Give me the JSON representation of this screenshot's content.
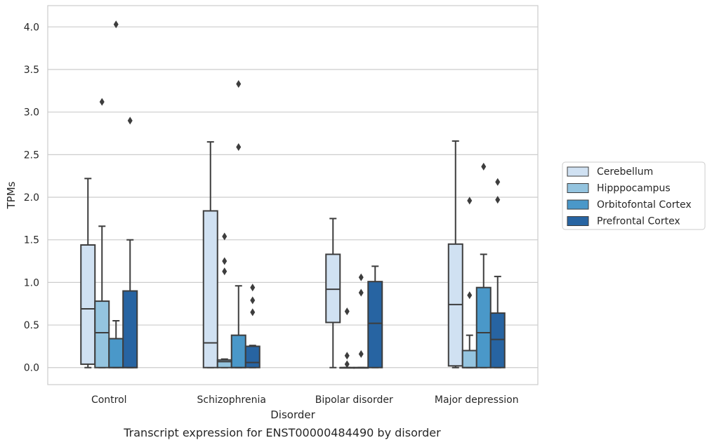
{
  "chart_data": {
    "type": "box",
    "title": "Transcript expression for ENST00000484490 by disorder",
    "xlabel": "Disorder",
    "ylabel": "TPMs",
    "ylim": [
      -0.2,
      4.25
    ],
    "yticks": [
      0.0,
      0.5,
      1.0,
      1.5,
      2.0,
      2.5,
      3.0,
      3.5,
      4.0
    ],
    "ytick_labels": [
      "0.0",
      "0.5",
      "1.0",
      "1.5",
      "2.0",
      "2.5",
      "3.0",
      "3.5",
      "4.0"
    ],
    "grid": "horizontal",
    "legend_position": "right",
    "categories": [
      "Control",
      "Schizophrenia",
      "Bipolar disorder",
      "Major depression"
    ],
    "series": [
      {
        "name": "Cerebellum",
        "color": "#d0e1f2",
        "boxes": [
          {
            "whislo": 0.0,
            "q1": 0.04,
            "med": 0.69,
            "q3": 1.44,
            "whishi": 2.22,
            "fliers": []
          },
          {
            "whislo": 0.0,
            "q1": 0.0,
            "med": 0.29,
            "q3": 1.84,
            "whishi": 2.65,
            "fliers": []
          },
          {
            "whislo": 0.0,
            "q1": 0.53,
            "med": 0.92,
            "q3": 1.33,
            "whishi": 1.75,
            "fliers": []
          },
          {
            "whislo": 0.0,
            "q1": 0.02,
            "med": 0.74,
            "q3": 1.45,
            "whishi": 2.66,
            "fliers": []
          }
        ]
      },
      {
        "name": "Hipppocampus",
        "color": "#94c4df",
        "boxes": [
          {
            "whislo": 0.0,
            "q1": 0.0,
            "med": 0.41,
            "q3": 0.78,
            "whishi": 1.66,
            "fliers": [
              3.12
            ]
          },
          {
            "whislo": 0.0,
            "q1": 0.0,
            "med": 0.07,
            "q3": 0.09,
            "whishi": 0.1,
            "fliers": [
              1.54,
              1.25,
              1.13
            ]
          },
          {
            "whislo": 0.0,
            "q1": 0.0,
            "med": 0.0,
            "q3": 0.0,
            "whishi": 0.0,
            "fliers": [
              0.66,
              0.14,
              0.04
            ]
          },
          {
            "whislo": 0.0,
            "q1": 0.0,
            "med": 0.0,
            "q3": 0.2,
            "whishi": 0.38,
            "fliers": [
              1.96,
              0.85
            ]
          }
        ]
      },
      {
        "name": "Orbitofontal Cortex",
        "color": "#4a98c9",
        "boxes": [
          {
            "whislo": 0.0,
            "q1": 0.0,
            "med": 0.0,
            "q3": 0.34,
            "whishi": 0.55,
            "fliers": [
              4.03
            ]
          },
          {
            "whislo": 0.0,
            "q1": 0.0,
            "med": 0.0,
            "q3": 0.38,
            "whishi": 0.96,
            "fliers": [
              3.33,
              2.59
            ]
          },
          {
            "whislo": 0.0,
            "q1": 0.0,
            "med": 0.0,
            "q3": 0.0,
            "whishi": 0.0,
            "fliers": [
              1.06,
              0.88,
              0.16
            ]
          },
          {
            "whislo": 0.0,
            "q1": 0.0,
            "med": 0.41,
            "q3": 0.94,
            "whishi": 1.33,
            "fliers": [
              2.36
            ]
          }
        ]
      },
      {
        "name": "Prefrontal Cortex",
        "color": "#2764a2",
        "boxes": [
          {
            "whislo": 0.0,
            "q1": 0.0,
            "med": 0.0,
            "q3": 0.9,
            "whishi": 1.5,
            "fliers": [
              2.9
            ]
          },
          {
            "whislo": 0.0,
            "q1": 0.0,
            "med": 0.06,
            "q3": 0.25,
            "whishi": 0.26,
            "fliers": [
              0.94,
              0.79,
              0.65
            ]
          },
          {
            "whislo": 0.0,
            "q1": 0.0,
            "med": 0.52,
            "q3": 1.01,
            "whishi": 1.19,
            "fliers": []
          },
          {
            "whislo": 0.0,
            "q1": 0.0,
            "med": 0.33,
            "q3": 0.64,
            "whishi": 1.07,
            "fliers": [
              2.18,
              1.97
            ]
          }
        ]
      }
    ]
  }
}
